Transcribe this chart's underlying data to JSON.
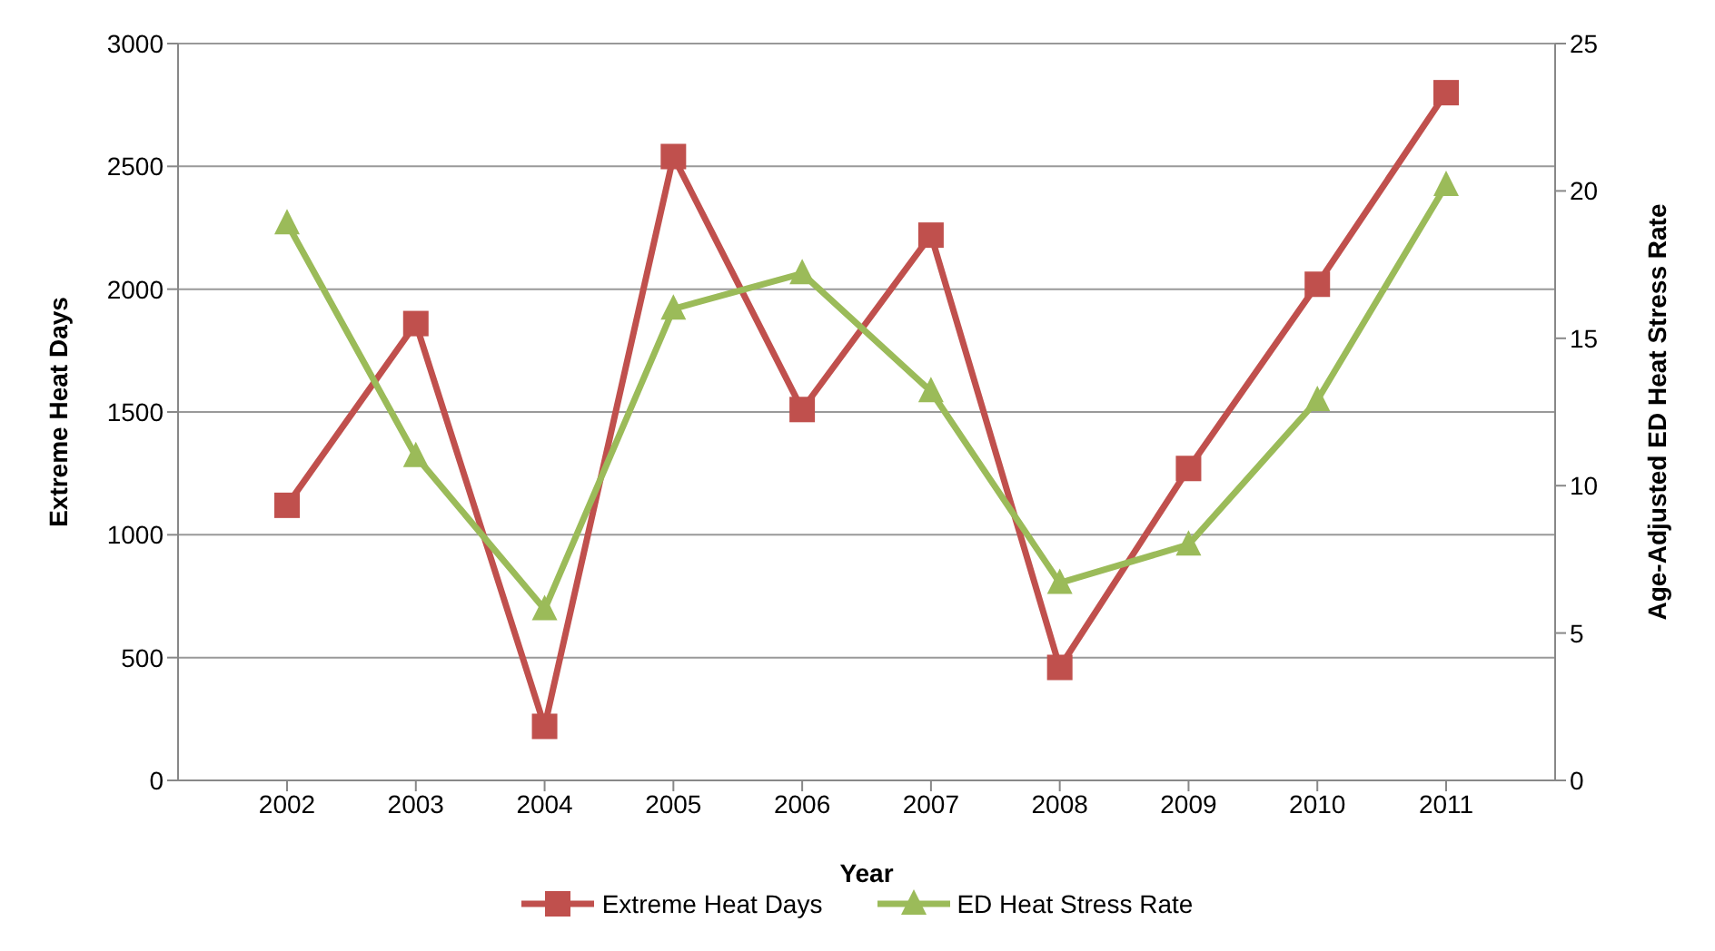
{
  "chart_data": {
    "type": "line",
    "xlabel": "Year",
    "ylabel": "Extreme Heat Days",
    "y2label": "Age-Adjusted ED Heat Stress Rate",
    "categories": [
      "2002",
      "2003",
      "2004",
      "2005",
      "2006",
      "2007",
      "2008",
      "2009",
      "2010",
      "2011"
    ],
    "series": [
      {
        "name": "Extreme Heat Days",
        "color": "#c0504d",
        "marker": "square",
        "values": [
          1120,
          1860,
          220,
          2540,
          1510,
          2220,
          460,
          1270,
          2020,
          2800
        ]
      },
      {
        "name": "ED Heat Stress Rate",
        "color": "#9bbb59",
        "marker": "triangle",
        "axis": "y2",
        "values": [
          18.9,
          11.0,
          5.8,
          16.0,
          17.2,
          13.2,
          6.7,
          8.0,
          12.9,
          20.2
        ]
      }
    ],
    "ylim": [
      0,
      3000
    ],
    "yticks": [
      0,
      500,
      1000,
      1500,
      2000,
      2500,
      3000
    ],
    "y2lim": [
      0,
      25
    ],
    "y2ticks": [
      0,
      5,
      10,
      15,
      20,
      25
    ],
    "grid": "y",
    "legend": "bottom"
  }
}
